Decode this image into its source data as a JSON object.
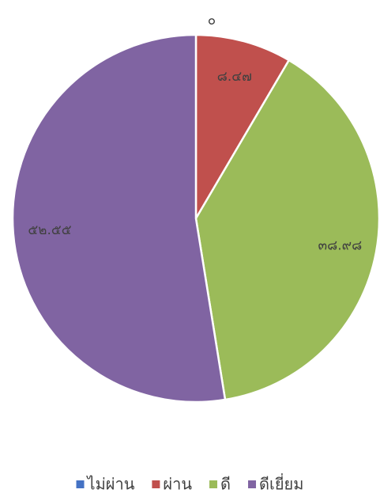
{
  "chart_data": {
    "type": "pie",
    "categories": [
      "ไม่ผ่าน",
      "ผ่าน",
      "ดี",
      "ดีเยี่ยม"
    ],
    "values": [
      0,
      8.47,
      38.98,
      52.55
    ],
    "value_labels": [
      "๐",
      "๘.๔๗",
      "๓๘.๙๘",
      "๕๒.๕๕"
    ],
    "colors": [
      "#4472c4",
      "#c0504d",
      "#9bbb59",
      "#8064a2"
    ],
    "legend": "bottom"
  }
}
